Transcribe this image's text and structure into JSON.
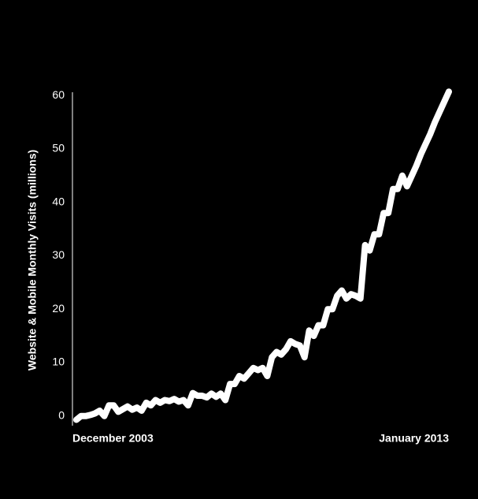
{
  "chart_data": {
    "type": "line",
    "ylabel": "Website & Mobile Monthly Visits (millions)",
    "categories": [
      "December 2003",
      null,
      null,
      null,
      null,
      null,
      null,
      null,
      null,
      null,
      null,
      null,
      null,
      null,
      null,
      null,
      null,
      null,
      null,
      null,
      null,
      null,
      null,
      null,
      null,
      null,
      null,
      null,
      null,
      null,
      null,
      null,
      null,
      null,
      null,
      null,
      null,
      null,
      null,
      null,
      null,
      null,
      null,
      null,
      null,
      null,
      null,
      null,
      null,
      null,
      null,
      null,
      null,
      null,
      null,
      null,
      null,
      null,
      null,
      null,
      null,
      null,
      null,
      null,
      null,
      null,
      null,
      null,
      null,
      null,
      null,
      null,
      null,
      null,
      null,
      null,
      null,
      null,
      null,
      null,
      "January 2013"
    ],
    "values": [
      -0.7,
      0,
      0,
      0.2,
      0.5,
      1,
      0,
      2,
      2,
      0.8,
      1.3,
      1.8,
      1.2,
      1.6,
      1,
      2.5,
      2,
      3,
      2.5,
      3,
      2.8,
      3.2,
      2.7,
      3,
      2,
      4.3,
      3.8,
      3.8,
      3.5,
      4.2,
      3.6,
      4.2,
      3,
      6,
      6,
      7.5,
      7,
      8,
      9,
      8.6,
      9,
      7.5,
      11,
      12,
      11.5,
      12.5,
      14,
      13.5,
      13.2,
      11,
      16,
      15,
      17,
      17,
      20,
      20,
      22.5,
      23.5,
      22,
      22.8,
      22.5,
      22,
      32,
      31,
      34,
      34,
      38,
      38,
      42.5,
      42.5,
      45,
      43,
      44.9,
      46.8,
      49,
      50.9,
      52.8,
      55,
      56.9,
      58.8,
      60.7
    ],
    "color": "#ffffff",
    "ylim": [
      -1.8,
      60.6
    ],
    "yticks": [
      0,
      10,
      20,
      30,
      40,
      50,
      60
    ]
  }
}
